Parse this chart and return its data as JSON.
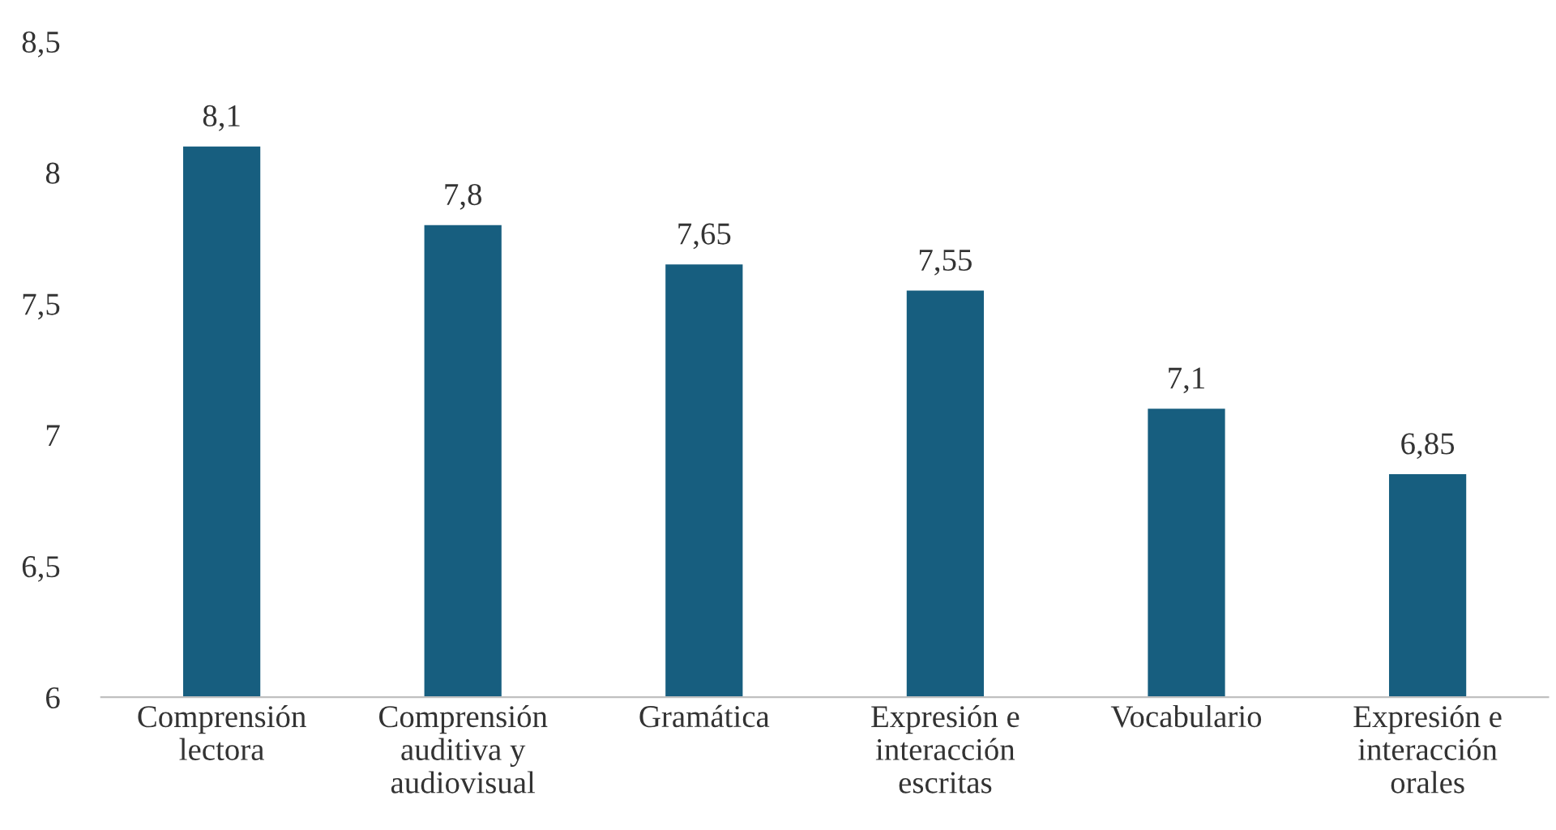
{
  "chart_data": {
    "type": "bar",
    "categories": [
      "Comprensión\nlectora",
      "Comprensión\nauditiva y\naudiovisual",
      "Gramática",
      "Expresión e\ninteracción\nescritas",
      "Vocabulario",
      "Expresión e\ninteracción\norales"
    ],
    "values": [
      8.1,
      7.8,
      7.65,
      7.55,
      7.1,
      6.85
    ],
    "value_labels": [
      "8,1",
      "7,8",
      "7,65",
      "7,55",
      "7,1",
      "6,85"
    ],
    "color": "#175e7f",
    "ylim": [
      6,
      8.5
    ],
    "yticks": [
      6,
      {
        "value": 6.5,
        "label": "6,5"
      },
      7,
      {
        "value": 7.5,
        "label": "7,5"
      },
      8,
      {
        "value": 8.5,
        "label": "8,5"
      }
    ],
    "grid": false,
    "legend": false
  }
}
